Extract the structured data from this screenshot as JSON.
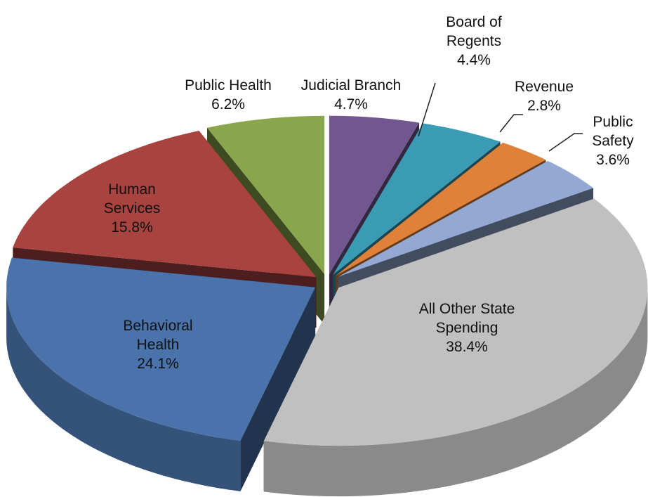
{
  "chart_data": {
    "type": "pie",
    "categories": [
      "Judicial Branch",
      "Board of Regents",
      "Revenue",
      "Public Safety",
      "All Other State Spending",
      "Behavioral Health",
      "Human Services",
      "Public Health"
    ],
    "values": [
      4.7,
      4.4,
      2.8,
      3.6,
      38.4,
      24.1,
      15.8,
      6.2
    ],
    "value_labels": [
      "4.7%",
      "4.4%",
      "2.8%",
      "3.6%",
      "38.4%",
      "24.1%",
      "15.8%",
      "6.2%"
    ],
    "colors": [
      "#71568f",
      "#3b9bb4",
      "#e0813a",
      "#93a9d4",
      "#c0c0c0",
      "#4a72ab",
      "#a84340",
      "#8aa64c"
    ]
  }
}
